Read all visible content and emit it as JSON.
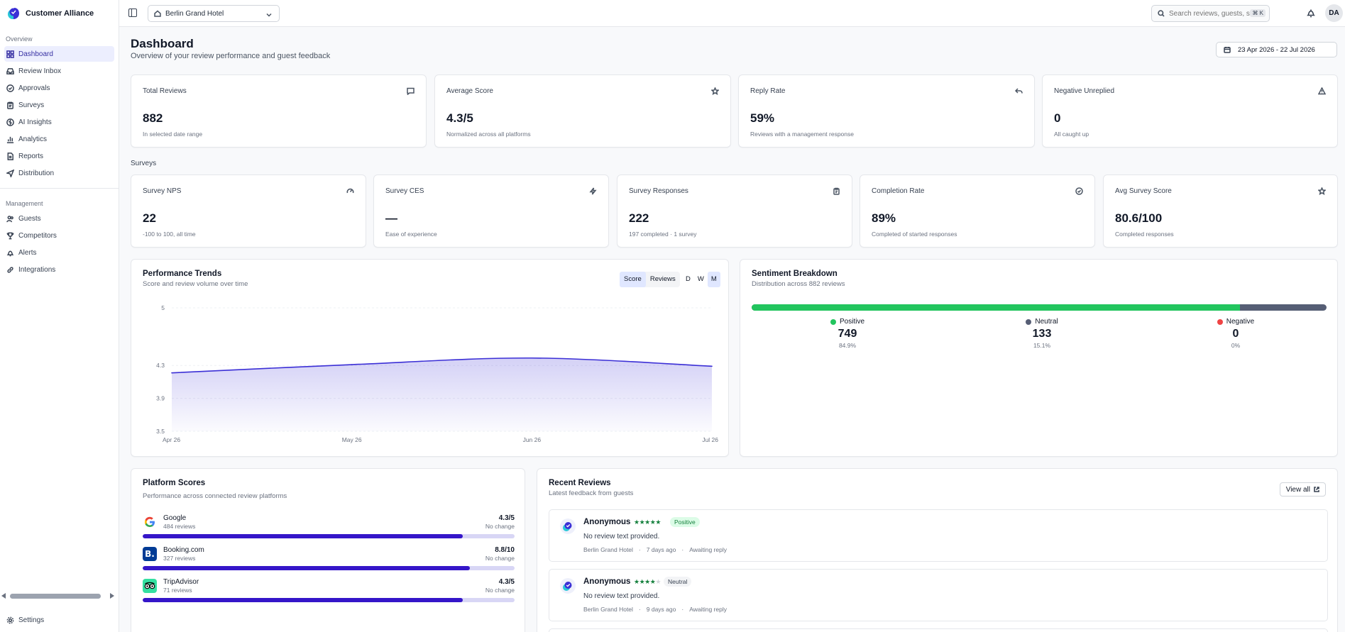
{
  "brand": {
    "name": "Customer Alliance"
  },
  "sidebar": {
    "overview_label": "Overview",
    "overview": [
      {
        "label": "Dashboard",
        "icon": "grid-icon"
      },
      {
        "label": "Review Inbox",
        "icon": "inbox-icon"
      },
      {
        "label": "Approvals",
        "icon": "check-circle-icon"
      },
      {
        "label": "Surveys",
        "icon": "clipboard-icon"
      },
      {
        "label": "AI Insights",
        "icon": "brain-icon"
      },
      {
        "label": "Analytics",
        "icon": "bar-chart-icon"
      },
      {
        "label": "Reports",
        "icon": "file-icon"
      },
      {
        "label": "Distribution",
        "icon": "send-icon"
      }
    ],
    "management_label": "Management",
    "management": [
      {
        "label": "Guests",
        "icon": "users-icon"
      },
      {
        "label": "Competitors",
        "icon": "trophy-icon"
      },
      {
        "label": "Alerts",
        "icon": "bell-icon"
      },
      {
        "label": "Integrations",
        "icon": "link-icon"
      }
    ],
    "settings_label": "Settings"
  },
  "topbar": {
    "hotel": "Berlin Grand Hotel",
    "search_placeholder": "Search reviews, guests, surveys...",
    "search_kbd": "⌘ K",
    "avatar_initials": "DA"
  },
  "header": {
    "title": "Dashboard",
    "subtitle": "Overview of your review performance and guest feedback",
    "date_range": "23 Apr 2026 - 22 Jul 2026"
  },
  "kpis": [
    {
      "label": "Total Reviews",
      "value": "882",
      "hint": "In selected date range",
      "icon": "message-icon"
    },
    {
      "label": "Average Score",
      "value": "4.3/5",
      "hint": "Normalized across all platforms",
      "icon": "star-icon"
    },
    {
      "label": "Reply Rate",
      "value": "59%",
      "hint": "Reviews with a management response",
      "icon": "reply-icon"
    },
    {
      "label": "Negative Unreplied",
      "value": "0",
      "hint": "All caught up",
      "icon": "warning-icon"
    }
  ],
  "surveys_label": "Surveys",
  "survey_kpis": [
    {
      "label": "Survey NPS",
      "value": "22",
      "hint": "-100 to 100, all time",
      "icon": "gauge-icon"
    },
    {
      "label": "Survey CES",
      "value": "—",
      "hint": "Ease of experience",
      "icon": "bolt-icon"
    },
    {
      "label": "Survey Responses",
      "value": "222",
      "hint": "197 completed · 1 survey",
      "icon": "clipboard-icon"
    },
    {
      "label": "Completion Rate",
      "value": "89%",
      "hint": "Completed of started responses",
      "icon": "check-circle-icon"
    },
    {
      "label": "Avg Survey Score",
      "value": "80.6/100",
      "hint": "Completed responses",
      "icon": "star-icon"
    }
  ],
  "trends": {
    "title": "Performance Trends",
    "subtitle": "Score and review volume over time",
    "metric_tabs": [
      "Score",
      "Reviews"
    ],
    "active_metric": "Score",
    "period_tabs": [
      "D",
      "W",
      "M"
    ],
    "active_period": "M"
  },
  "chart_data": {
    "type": "area",
    "x": [
      "Apr 26",
      "May 26",
      "Jun 26",
      "Jul 26"
    ],
    "y_ticks": [
      3.5,
      3.9,
      4.3,
      5
    ],
    "ylim": [
      3.5,
      5
    ],
    "values": [
      4.21,
      4.31,
      4.39,
      4.29
    ],
    "color": "#3b2fd6"
  },
  "sentiment": {
    "title": "Sentiment Breakdown",
    "subtitle": "Distribution across 882 reviews",
    "positive": {
      "label": "Positive",
      "count": "749",
      "pct": "84.9%",
      "fraction": 0.849,
      "color": "#22c55e"
    },
    "neutral": {
      "label": "Neutral",
      "count": "133",
      "pct": "15.1%",
      "fraction": 0.151,
      "color": "#565e75"
    },
    "negative": {
      "label": "Negative",
      "count": "0",
      "pct": "0%",
      "fraction": 0,
      "color": "#ef4444"
    }
  },
  "platforms": {
    "title": "Platform Scores",
    "subtitle": "Performance across connected review platforms",
    "items": [
      {
        "name": "Google",
        "reviews": "484 reviews",
        "score": "4.3/5",
        "change": "No change",
        "fraction": 0.86
      },
      {
        "name": "Booking.com",
        "reviews": "327 reviews",
        "score": "8.8/10",
        "change": "No change",
        "fraction": 0.88
      },
      {
        "name": "TripAdvisor",
        "reviews": "71 reviews",
        "score": "4.3/5",
        "change": "No change",
        "fraction": 0.86
      }
    ]
  },
  "recent": {
    "title": "Recent Reviews",
    "subtitle": "Latest feedback from guests",
    "view_all": "View all",
    "items": [
      {
        "author": "Anonymous",
        "stars": 5,
        "sentiment": "Positive",
        "text": "No review text provided.",
        "hotel": "Berlin Grand Hotel",
        "age": "7 days ago",
        "status": "Awaiting reply"
      },
      {
        "author": "Anonymous",
        "stars": 4,
        "sentiment": "Neutral",
        "text": "No review text provided.",
        "hotel": "Berlin Grand Hotel",
        "age": "9 days ago",
        "status": "Awaiting reply"
      }
    ]
  }
}
